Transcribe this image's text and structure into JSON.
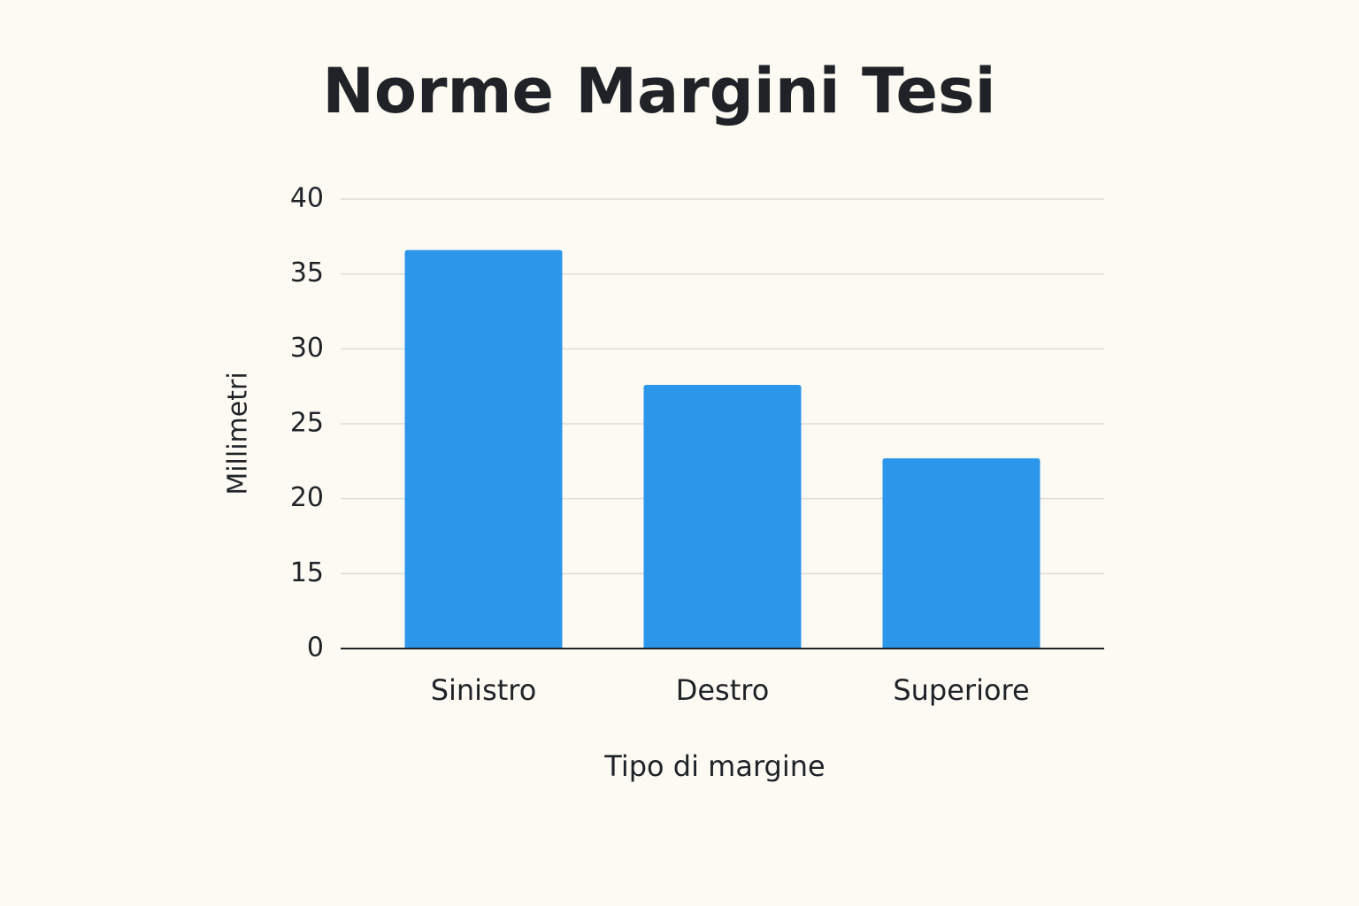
{
  "chart_data": {
    "type": "bar",
    "title": "Norme Margini Tesi",
    "x_label": "Tipo di margine",
    "y_label": "Millimetri",
    "categories": [
      "Sinistro",
      "Destro",
      "Superiore"
    ],
    "values": [
      36.6,
      27.6,
      22.7
    ],
    "color": "#2b96ea",
    "ylim": [
      0,
      40
    ],
    "yticks": [
      0,
      15,
      20,
      25,
      30,
      35,
      40
    ],
    "grid": true
  }
}
